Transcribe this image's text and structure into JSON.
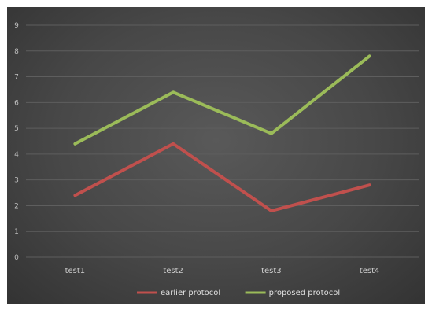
{
  "chart_data": {
    "type": "line",
    "categories": [
      "test1",
      "test2",
      "test3",
      "test4"
    ],
    "series": [
      {
        "name": "earlier protocol",
        "color": "#c0504d",
        "values": [
          2.4,
          4.4,
          1.8,
          2.8
        ]
      },
      {
        "name": "proposed protocol",
        "color": "#9bbb59",
        "values": [
          4.4,
          6.4,
          4.8,
          7.8
        ]
      }
    ],
    "yticks": [
      0,
      1,
      2,
      3,
      4,
      5,
      6,
      7,
      8,
      9
    ],
    "ylim": [
      0,
      9
    ],
    "grid": true,
    "legend_position": "bottom",
    "background": "dark-gray-gradient"
  }
}
